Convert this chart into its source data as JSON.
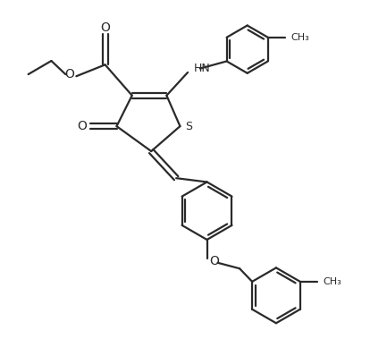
{
  "bg_color": "#ffffff",
  "line_color": "#2a2a2a",
  "line_width": 1.6,
  "figsize": [
    4.33,
    3.79
  ],
  "dpi": 100,
  "xlim": [
    0,
    10
  ],
  "ylim": [
    0,
    8.75
  ]
}
